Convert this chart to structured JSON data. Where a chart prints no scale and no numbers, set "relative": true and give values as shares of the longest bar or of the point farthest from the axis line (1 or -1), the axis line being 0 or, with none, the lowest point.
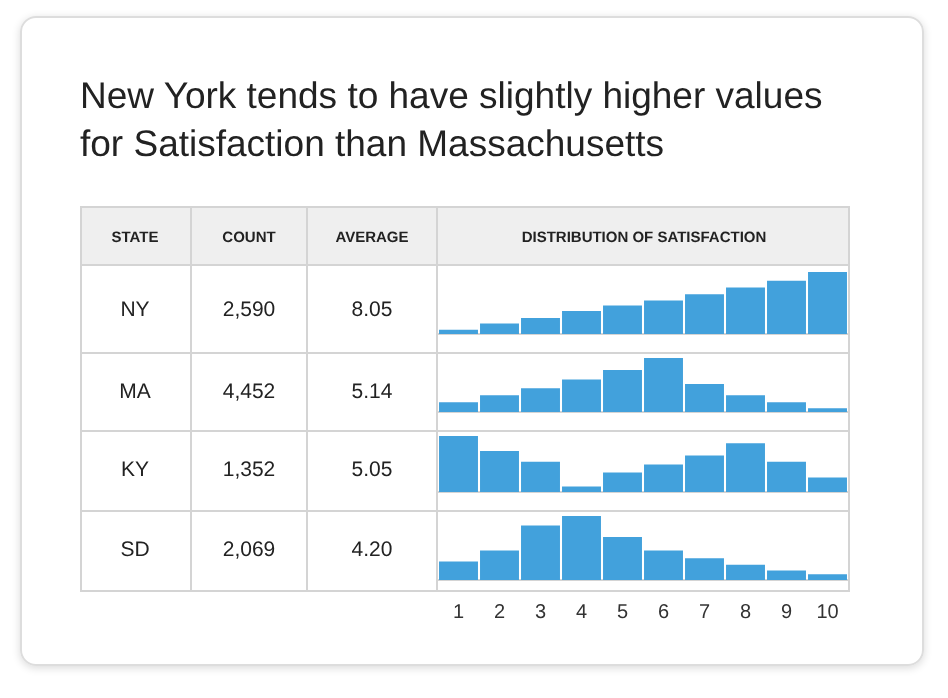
{
  "chart_data": [
    {
      "type": "other",
      "title": "New York tends to have slightly higher values for Satisfaction than Massachusetts",
      "annotations": [
        "STATE",
        "COUNT",
        "AVERAGE",
        "DISTRIBUTION OF SATISFACTION"
      ]
    },
    {
      "type": "bar",
      "relative": true,
      "color": "#42a1dc",
      "tick_labels": false,
      "annotations": [
        "NY",
        "2,590",
        "8.05"
      ],
      "categories": [
        null,
        null,
        null,
        null,
        null,
        null,
        null,
        null,
        null,
        null
      ],
      "values": [
        0.07,
        0.17,
        0.26,
        0.37,
        0.46,
        0.54,
        0.64,
        0.75,
        0.86,
        1
      ]
    },
    {
      "type": "bar",
      "relative": true,
      "color": "#42a1dc",
      "tick_labels": false,
      "annotations": [
        "MA",
        "4,452",
        "5.14"
      ],
      "categories": [
        null,
        null,
        null,
        null,
        null,
        null,
        null,
        null,
        null,
        null
      ],
      "values": [
        0.18,
        0.31,
        0.44,
        0.6,
        0.78,
        1,
        0.52,
        0.31,
        0.18,
        0.07
      ]
    },
    {
      "type": "bar",
      "relative": true,
      "color": "#42a1dc",
      "tick_labels": false,
      "annotations": [
        "KY",
        "1,352",
        "5.05"
      ],
      "categories": [
        null,
        null,
        null,
        null,
        null,
        null,
        null,
        null,
        null,
        null
      ],
      "values": [
        1,
        0.73,
        0.54,
        0.1,
        0.35,
        0.49,
        0.65,
        0.87,
        0.54,
        0.26
      ]
    },
    {
      "type": "bar",
      "relative": true,
      "color": "#42a1dc",
      "tick_labels": "x",
      "annotations": [
        "SD",
        "2,069",
        "4.20"
      ],
      "categories": [
        "1",
        "2",
        "3",
        "4",
        "5",
        "6",
        "7",
        "8",
        "9",
        "10"
      ],
      "values": [
        0.29,
        0.46,
        0.85,
        1,
        0.67,
        0.46,
        0.34,
        0.24,
        0.15,
        0.09
      ]
    }
  ]
}
